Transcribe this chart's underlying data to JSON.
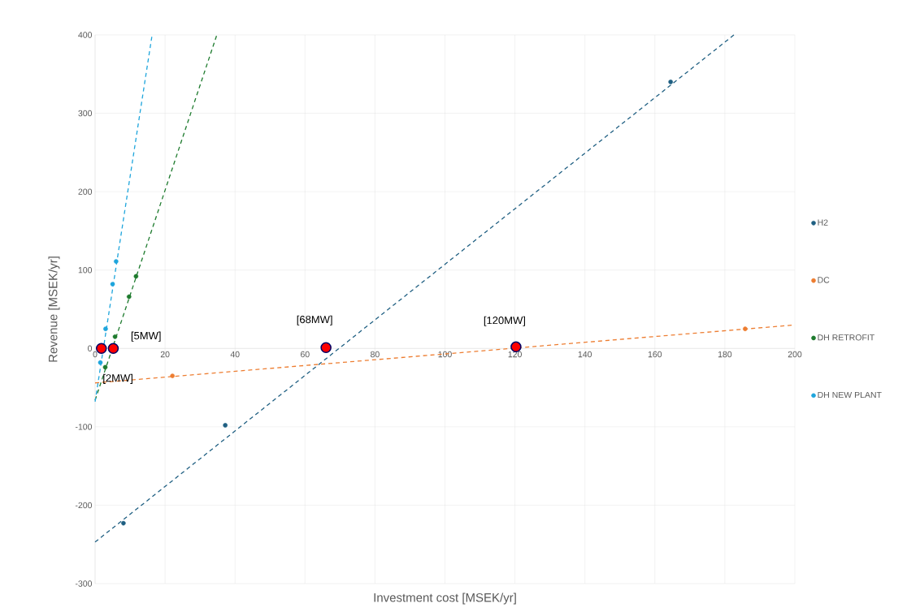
{
  "chart_data": {
    "type": "scatter",
    "xlabel": "Investment cost [MSEK/yr]",
    "ylabel": "Revenue [MSEK/yr]",
    "xlim": [
      0,
      200
    ],
    "ylim": [
      -300,
      400
    ],
    "xticks": [
      0,
      20,
      40,
      60,
      80,
      100,
      120,
      140,
      160,
      180,
      200
    ],
    "yticks": [
      -300,
      -200,
      -100,
      0,
      100,
      200,
      300,
      400
    ],
    "grid": true,
    "legend": "right",
    "series": [
      {
        "type": "line",
        "marker": "none",
        "line_style": "dashed",
        "color": "#1f5f82",
        "x": [
          0,
          182.6
        ],
        "values": [
          -247,
          400
        ]
      },
      {
        "type": "line",
        "marker": "none",
        "line_style": "dashed",
        "color": "#ed7d31",
        "x": [
          0,
          200
        ],
        "values": [
          -44,
          30
        ]
      },
      {
        "type": "line",
        "marker": "none",
        "line_style": "dashed",
        "color": "#1e7b2e",
        "x": [
          0,
          34.8
        ],
        "values": [
          -66,
          400
        ]
      },
      {
        "type": "line",
        "marker": "none",
        "line_style": "dashed",
        "color": "#1ea5dc",
        "x": [
          0,
          16.3
        ],
        "values": [
          -68,
          400
        ]
      },
      {
        "name": "H2",
        "marker": "circle",
        "color": "#1f5f82",
        "x": [
          8.1,
          37.2,
          164.5
        ],
        "values": [
          -223,
          -98,
          340
        ]
      },
      {
        "name": "DC",
        "marker": "circle",
        "color": "#ed7d31",
        "x": [
          22.1,
          185.8
        ],
        "values": [
          -35,
          25
        ]
      },
      {
        "name": "DH RETROFIT",
        "marker": "circle",
        "color": "#1e7b2e",
        "x": [
          2.9,
          5.7,
          9.7,
          11.7
        ],
        "values": [
          -24,
          15,
          66,
          92
        ]
      },
      {
        "name": "DH NEW PLANT",
        "marker": "circle",
        "color": "#1ea5dc",
        "x": [
          1.5,
          3.0,
          5.0,
          6.0
        ],
        "values": [
          -18,
          25,
          82,
          111
        ]
      },
      {
        "marker": "circle",
        "color": "#ff0000",
        "x": [
          1.8,
          5.2,
          66,
          120.3
        ],
        "values": [
          0,
          0,
          1,
          2
        ]
      }
    ],
    "annotations": [
      {
        "text": "[2MW]",
        "x": 1.8,
        "y": 0
      },
      {
        "text": "[5MW]",
        "x": 5.2,
        "y": 0
      },
      {
        "text": "[68MW]",
        "x": 66,
        "y": 1
      },
      {
        "text": "[120MW]",
        "x": 120.3,
        "y": 2
      }
    ]
  }
}
